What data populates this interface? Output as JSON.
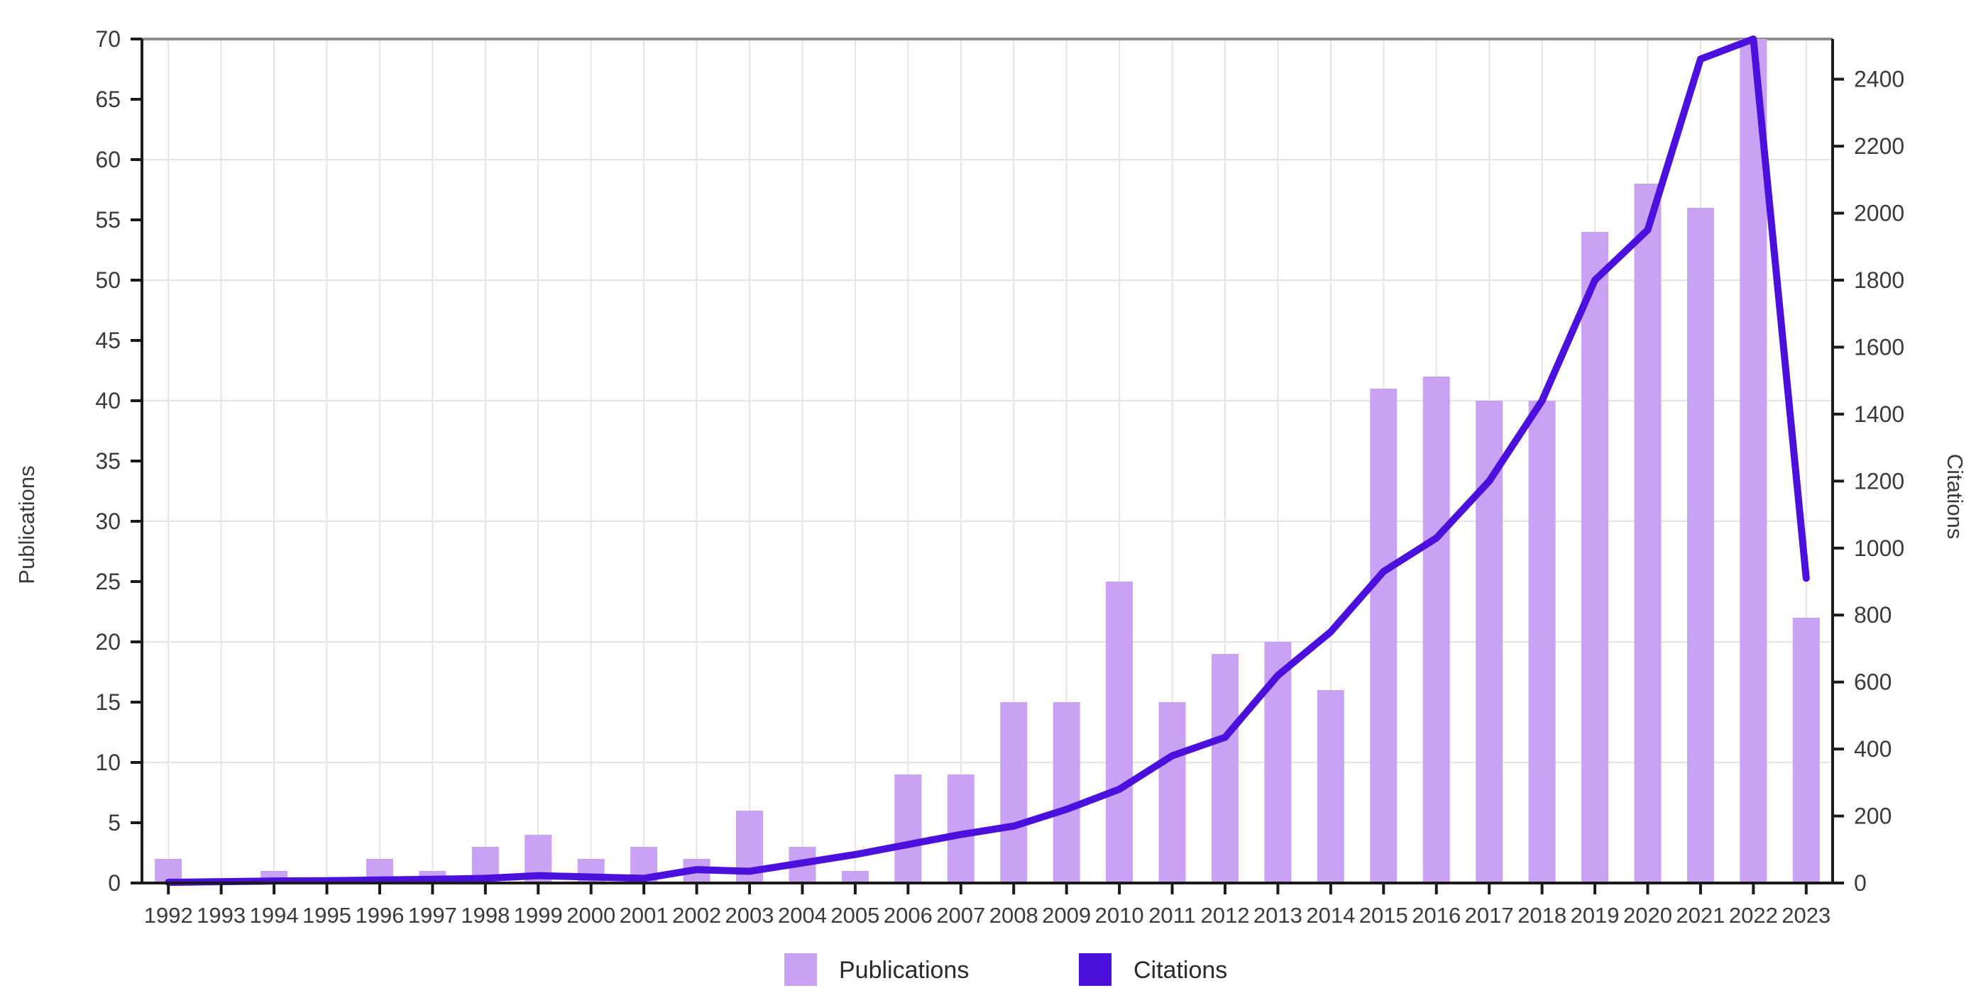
{
  "figure": {
    "background": "#ffffff"
  },
  "colors": {
    "bar": "#c9a1f5",
    "line": "#4b10dc",
    "grid": "#e4e4e8",
    "axis": "#1a1a1a",
    "top_border": "#8e8e8e",
    "text": "#3a3a3a"
  },
  "chart_data": {
    "type": "bar+line combo, dual y-axes",
    "categories": [
      1992,
      1993,
      1994,
      1995,
      1996,
      1997,
      1998,
      1999,
      2000,
      2001,
      2002,
      2003,
      2004,
      2005,
      2006,
      2007,
      2008,
      2009,
      2010,
      2011,
      2012,
      2013,
      2014,
      2015,
      2016,
      2017,
      2018,
      2019,
      2020,
      2021,
      2022,
      2023
    ],
    "series": [
      {
        "name": "Publications",
        "type": "bar",
        "axis": "left",
        "color": "#c9a1f5",
        "values": [
          2,
          0,
          1,
          0,
          2,
          1,
          3,
          4,
          2,
          3,
          2,
          6,
          3,
          1,
          9,
          9,
          15,
          15,
          25,
          15,
          19,
          20,
          16,
          41,
          42,
          40,
          40,
          54,
          58,
          56,
          70,
          22
        ]
      },
      {
        "name": "Citations",
        "type": "line",
        "axis": "right",
        "color": "#4b10dc",
        "values": [
          2,
          4,
          6,
          7,
          9,
          11,
          14,
          22,
          18,
          14,
          40,
          35,
          60,
          85,
          115,
          145,
          170,
          220,
          280,
          380,
          435,
          620,
          750,
          930,
          1030,
          1200,
          1440,
          1800,
          1950,
          2460,
          2520,
          910
        ]
      }
    ],
    "left_axis": {
      "label": "Publications",
      "min": 0,
      "max": 70,
      "tick_step": 5
    },
    "right_axis": {
      "label": "Citations",
      "min": 0,
      "max": 2520,
      "tick_step": 200,
      "tick_max": 2400
    },
    "grid": {
      "horizontal_every_left_units": 10,
      "vertical_per_category": true
    },
    "legend_position": "bottom-center"
  }
}
